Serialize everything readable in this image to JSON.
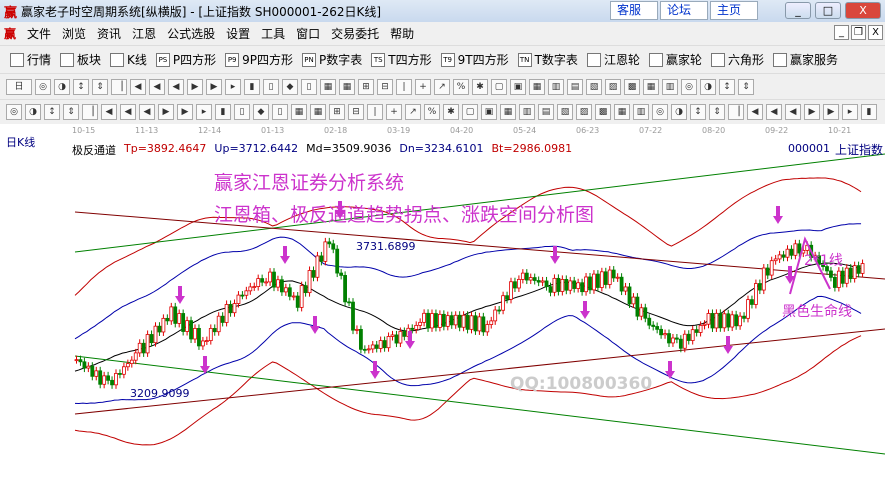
{
  "window": {
    "title": "赢家老子时空周期系统[纵横版] - [上证指数  SH000001-262日K线]",
    "logo": "赢",
    "links": [
      "客服",
      "论坛",
      "主页"
    ],
    "controls": [
      "_",
      "□",
      "X"
    ]
  },
  "menu": {
    "logo": "赢",
    "items": [
      "文件",
      "浏览",
      "资讯",
      "江恩",
      "公式选股",
      "设置",
      "工具",
      "窗口",
      "交易委托",
      "帮助"
    ],
    "mdi": [
      "_",
      "❐",
      "X"
    ]
  },
  "toolbar": {
    "items": [
      {
        "icon": "grid-icon",
        "label": "行情"
      },
      {
        "icon": "blocks-icon",
        "label": "板块"
      },
      {
        "icon": "candles-icon",
        "label": "K线"
      },
      {
        "icon": "PS",
        "label": "P四方形"
      },
      {
        "icon": "P9",
        "label": "9P四方形"
      },
      {
        "icon": "PN",
        "label": "P数字表"
      },
      {
        "icon": "TS",
        "label": "T四方形"
      },
      {
        "icon": "T9",
        "label": "9T四方形"
      },
      {
        "icon": "TN",
        "label": "T数字表"
      },
      {
        "icon": "target-icon",
        "label": "江恩轮"
      },
      {
        "icon": "wheel-icon",
        "label": "赢家轮"
      },
      {
        "icon": "hexagon-icon",
        "label": "六角形"
      },
      {
        "icon": "dollar-icon",
        "label": "赢家服务"
      }
    ]
  },
  "period": "日",
  "chart": {
    "period_label": "日K线",
    "dates": [
      "10-15",
      "11-13",
      "12-14",
      "01-13",
      "02-18",
      "03-19",
      "04-20",
      "05-24",
      "06-23",
      "07-22",
      "08-20",
      "09-22",
      "10-21"
    ],
    "indicator_name": "极反通道",
    "params": [
      {
        "text": "Tp=3892.4647",
        "color": "#c00000"
      },
      {
        "text": "Up=3712.6442",
        "color": "#000080"
      },
      {
        "text": "Md=3509.9036",
        "color": "#000"
      },
      {
        "text": "Dn=3234.6101",
        "color": "#000080"
      },
      {
        "text": "Bt=2986.0981",
        "color": "#c00000"
      }
    ],
    "code": "000001",
    "name": "上证指数",
    "headline1": "赢家江恩证券分析系统",
    "headline2": "江恩箱、极反通道趋势拐点、涨跌空间分析图",
    "high_label": "3731.6899",
    "low_label": "3209.9099",
    "note_21": "2*1线",
    "note_life": "黑色生命线",
    "watermark": "QQ:100800360",
    "accent": "#cc33cc",
    "closes": [
      3323,
      3236,
      3354,
      3482,
      3380,
      3525,
      3611,
      3525,
      3731,
      3354,
      3388,
      3456,
      3456,
      3440,
      3611,
      3577,
      3577,
      3611,
      3456,
      3371,
      3456,
      3456,
      3662,
      3713,
      3594,
      3645
    ]
  }
}
